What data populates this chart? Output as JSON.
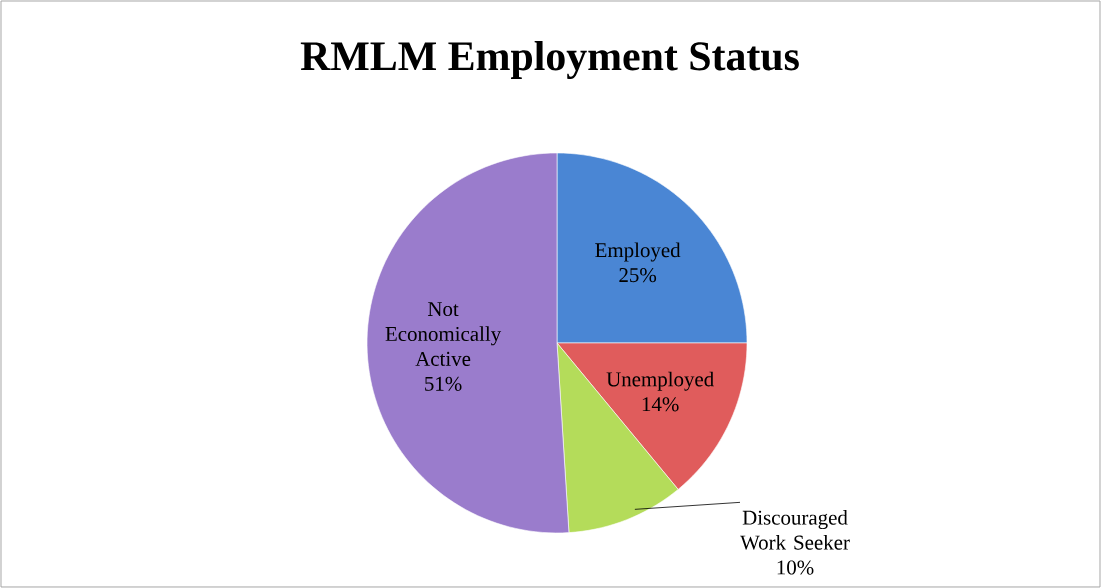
{
  "chart_data": {
    "type": "pie",
    "title": "RMLM Employment Status",
    "categories": [
      "Employed",
      "Unemployed",
      "Discouraged Work Seeker",
      "Not Economically Active"
    ],
    "values": [
      25,
      14,
      10,
      51
    ],
    "value_labels": [
      "25%",
      "14%",
      "10%",
      "51%"
    ],
    "colors": [
      "#4a86d4",
      "#e05c5c",
      "#b4dc5a",
      "#9a7ccc"
    ]
  }
}
